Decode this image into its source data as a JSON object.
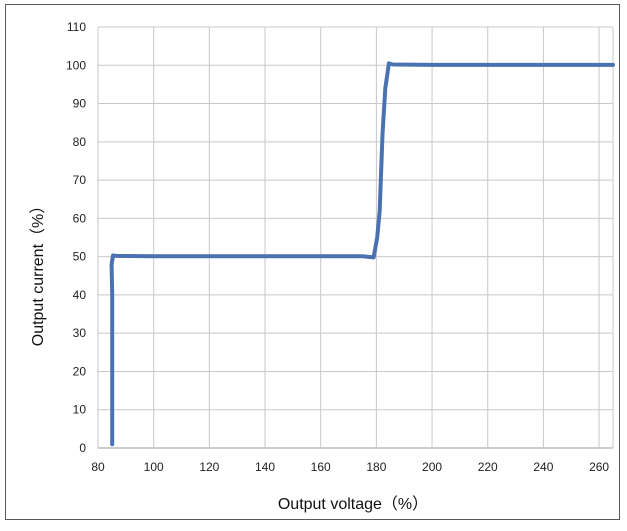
{
  "chart_data": {
    "type": "line",
    "title": "",
    "xlabel": "Output voltage（%）",
    "ylabel": "Output current（%）",
    "xlim": [
      80,
      265
    ],
    "ylim": [
      0,
      110
    ],
    "x_ticks": [
      80,
      100,
      120,
      140,
      160,
      180,
      200,
      220,
      240,
      260
    ],
    "y_ticks": [
      0,
      10,
      20,
      30,
      40,
      50,
      60,
      70,
      80,
      90,
      100,
      110
    ],
    "x_tick_labels": [
      "80",
      "100",
      "120",
      "140",
      "160",
      "180",
      "200",
      "220",
      "240",
      "260"
    ],
    "y_tick_labels": [
      "0",
      "10",
      "20",
      "30",
      "40",
      "50",
      "60",
      "70",
      "80",
      "90",
      "100",
      "110"
    ],
    "grid": true,
    "legend": "none",
    "series": [
      {
        "color": "#4a72b0",
        "x": [
          85.1,
          85.1,
          84.9,
          85.4,
          86.5,
          100,
          120,
          140,
          160,
          175,
          179,
          180.3,
          181.2,
          182.2,
          183.2,
          184.5,
          186,
          200,
          220,
          240,
          265
        ],
        "y": [
          1,
          40,
          48,
          50.3,
          50.2,
          50.1,
          50.1,
          50.1,
          50.1,
          50.1,
          49.8,
          55,
          62,
          82,
          94,
          100.5,
          100.2,
          100.1,
          100.1,
          100.1,
          100.1
        ]
      }
    ]
  }
}
